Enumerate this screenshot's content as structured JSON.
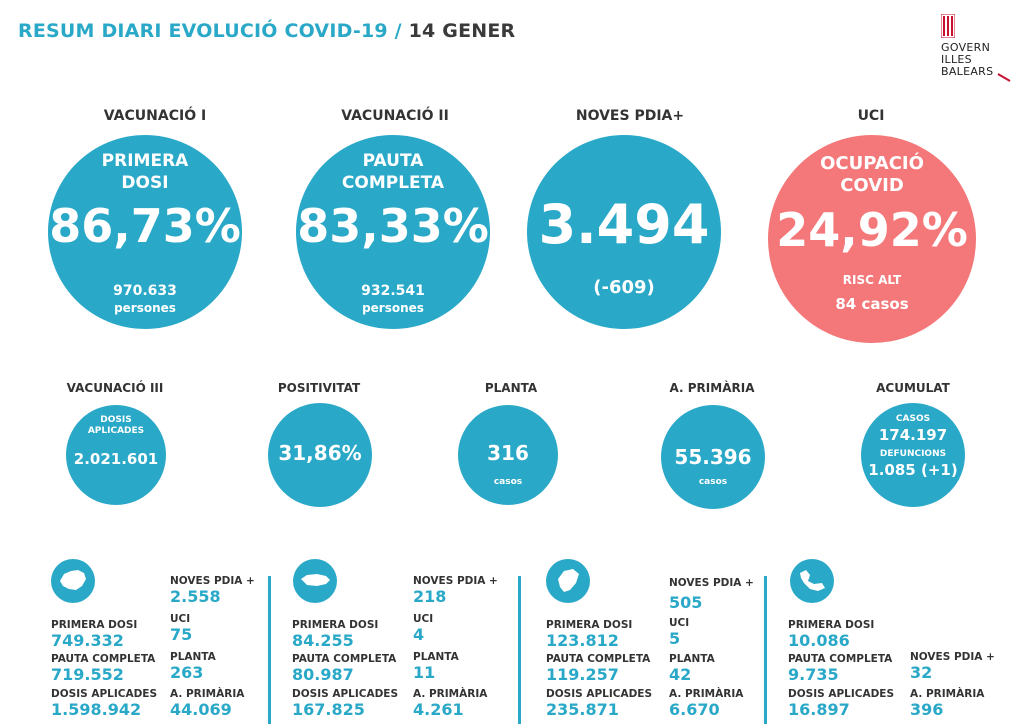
{
  "header": {
    "title_main": "RESUM DIARI EVOLUCIÓ COVID-19 /",
    "title_date": "14 GENER"
  },
  "logo": {
    "line1": "GOVERN",
    "line2": "ILLES",
    "line3": "BALEARS"
  },
  "big": [
    {
      "label": "VACUNACIÓ I",
      "head1": "PRIMERA",
      "head2": "DOSI",
      "value": "86,73%",
      "sub1": "970.633",
      "sub2": "persones"
    },
    {
      "label": "VACUNACIÓ II",
      "head1": "PAUTA",
      "head2": "COMPLETA",
      "value": "83,33%",
      "sub1": "932.541",
      "sub2": "persones"
    },
    {
      "label": "NOVES PDIA+",
      "value": "3.494",
      "sub1": "(-609)"
    },
    {
      "label": "UCI",
      "head1": "OCUPACIÓ",
      "head2": "COVID",
      "value": "24,92%",
      "sub1": "RISC ALT",
      "sub2": "84 casos"
    }
  ],
  "small": [
    {
      "label": "VACUNACIÓ III",
      "head1": "DOSIS",
      "head2": "APLICADES",
      "value": "2.021.601"
    },
    {
      "label": "POSITIVITAT",
      "value": "31,86%"
    },
    {
      "label": "PLANTA",
      "value": "316",
      "sub": "casos"
    },
    {
      "label": "A. PRIMÀRIA",
      "value": "55.396",
      "sub": "casos"
    },
    {
      "label": "ACUMULAT",
      "head1": "CASOS",
      "value1": "174.197",
      "head2": "DEFUNCIONS",
      "value2": "1.085 (+1)"
    }
  ],
  "islands": [
    {
      "name": "mallorca-icon",
      "primera_dosi_label": "PRIMERA DOSI",
      "primera_dosi": "749.332",
      "pauta_label": "PAUTA COMPLETA",
      "pauta": "719.552",
      "dosis_label": "DOSIS APLICADES",
      "dosis": "1.598.942",
      "pdia_label": "NOVES PDIA +",
      "pdia": "2.558",
      "uci_label": "UCI",
      "uci": "75",
      "planta_label": "PLANTA",
      "planta": "263",
      "primaria_label": "A. PRIMÀRIA",
      "primaria": "44.069"
    },
    {
      "name": "menorca-icon",
      "primera_dosi_label": "PRIMERA DOSI",
      "primera_dosi": "84.255",
      "pauta_label": "PAUTA COMPLETA",
      "pauta": "80.987",
      "dosis_label": "DOSIS APLICADES",
      "dosis": "167.825",
      "pdia_label": "NOVES PDIA +",
      "pdia": "218",
      "uci_label": "UCI",
      "uci": "4",
      "planta_label": "PLANTA",
      "planta": "11",
      "primaria_label": "A. PRIMÀRIA",
      "primaria": "4.261"
    },
    {
      "name": "eivissa-icon",
      "primera_dosi_label": "PRIMERA DOSI",
      "primera_dosi": "123.812",
      "pauta_label": "PAUTA COMPLETA",
      "pauta": "119.257",
      "dosis_label": "DOSIS APLICADES",
      "dosis": "235.871",
      "pdia_label": "NOVES PDIA +",
      "pdia": "505",
      "uci_label": "UCI",
      "uci": "5",
      "planta_label": "PLANTA",
      "planta": "42",
      "primaria_label": "A. PRIMÀRIA",
      "primaria": "6.670"
    },
    {
      "name": "formentera-icon",
      "primera_dosi_label": "PRIMERA DOSI",
      "primera_dosi": "10.086",
      "pauta_label": "PAUTA COMPLETA",
      "pauta": "9.735",
      "dosis_label": "DOSIS APLICADES",
      "dosis": "16.897",
      "pdia_label": "NOVES PDIA +",
      "pdia": "32",
      "primaria_label": "A. PRIMÀRIA",
      "primaria": "396"
    }
  ],
  "colors": {
    "accent": "#2aa8c8",
    "alert": "#f4787a"
  }
}
